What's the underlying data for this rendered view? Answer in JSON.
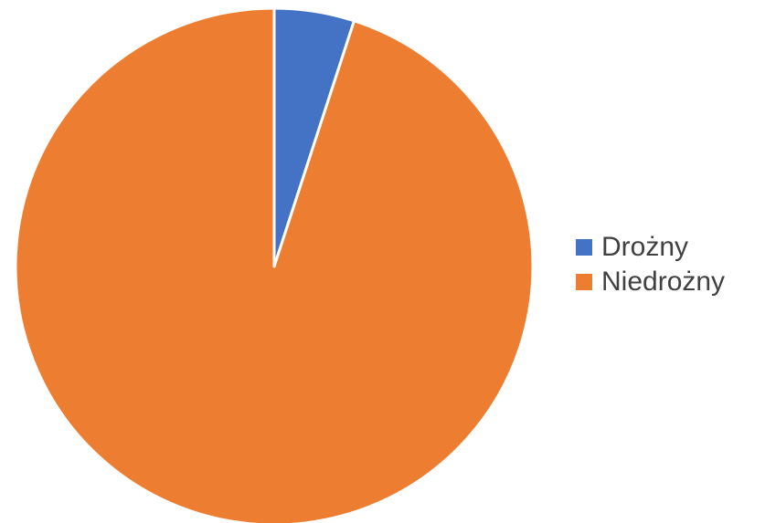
{
  "chart_data": {
    "type": "pie",
    "title": "",
    "categories": [
      "Drożny",
      "Niedrożny"
    ],
    "values": [
      5,
      95
    ],
    "colors": [
      "#4472C4",
      "#ED7D31"
    ],
    "start_angle_deg": 0,
    "direction": "clockwise",
    "legend": "right",
    "slice_border_color": "#ffffff"
  }
}
